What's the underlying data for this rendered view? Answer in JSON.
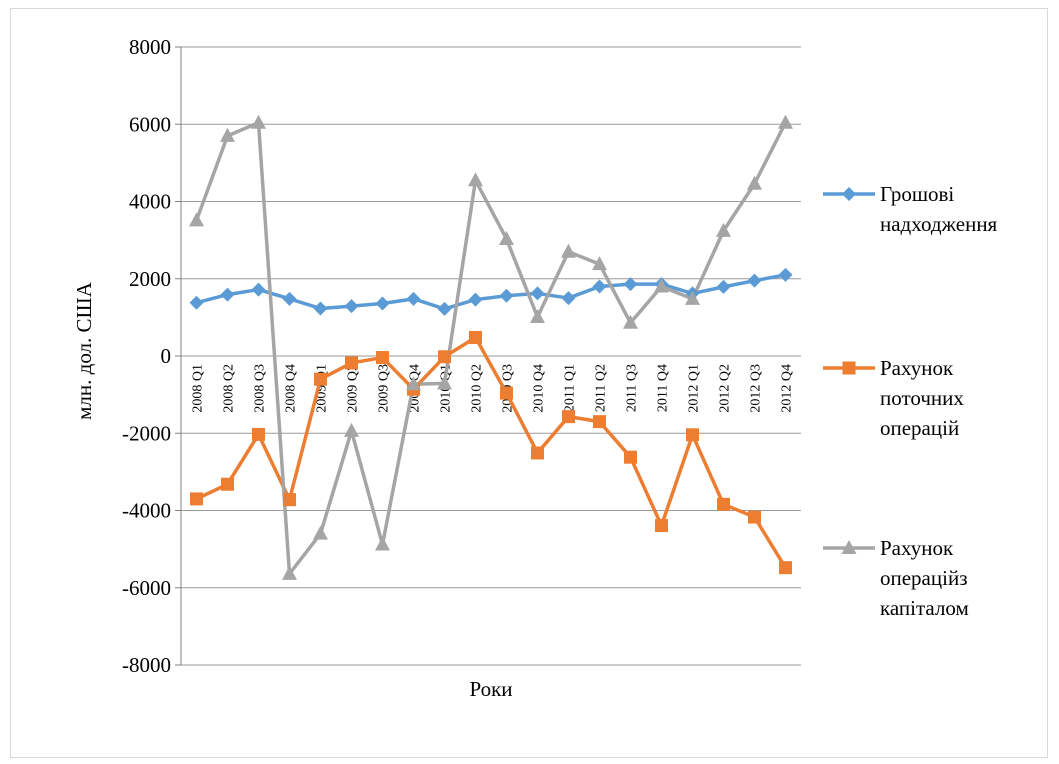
{
  "chart_data": {
    "type": "line",
    "xlabel": "Роки",
    "ylabel": "млн. дол. США",
    "ylim": [
      -8000,
      8000
    ],
    "ytick_step": 2000,
    "yticks": [
      "8000",
      "6000",
      "4000",
      "2000",
      "0",
      "-2000",
      "-4000",
      "-6000",
      "-8000"
    ],
    "grid": true,
    "legend_position": "right",
    "categories": [
      "2008 Q1",
      "2008 Q2",
      "2008 Q3",
      "2008 Q4",
      "2009 Q1",
      "2009 Q2",
      "2009 Q3",
      "2009 Q4",
      "2010 Q1",
      "2010 Q2",
      "2010 Q3",
      "2010 Q4",
      "2011 Q1",
      "2011 Q2",
      "2011 Q3",
      "2011 Q4",
      "2012 Q1",
      "2012 Q2",
      "2012 Q3",
      "2012 Q4"
    ],
    "series": [
      {
        "name": "Грошові надходження",
        "legend_lines": [
          "Грошові",
          "надходження"
        ],
        "color": "#5b9bd5",
        "marker": "diamond",
        "values": [
          1380,
          1590,
          1720,
          1480,
          1230,
          1290,
          1360,
          1480,
          1220,
          1460,
          1560,
          1620,
          1500,
          1800,
          1860,
          1860,
          1620,
          1790,
          1950,
          2100
        ]
      },
      {
        "name": "Рахунок поточних операцій",
        "legend_lines": [
          "Рахунок",
          "поточних",
          "операцій"
        ],
        "color": "#ed7d31",
        "marker": "square",
        "values": [
          -3700,
          -3320,
          -2030,
          -3720,
          -600,
          -180,
          -40,
          -860,
          -20,
          480,
          -960,
          -2510,
          -1570,
          -1700,
          -2620,
          -4390,
          -2040,
          -3840,
          -4170,
          -5480
        ]
      },
      {
        "name": "Рахунок операцій з капіталом",
        "legend_lines": [
          "Рахунок",
          "операційз",
          "капіталом"
        ],
        "color": "#a5a5a5",
        "marker": "triangle",
        "values": [
          3510,
          5700,
          6040,
          -5640,
          -4600,
          -1940,
          -4880,
          -730,
          -710,
          4550,
          3030,
          1010,
          2700,
          2380,
          860,
          1800,
          1480,
          3240,
          4460,
          6040
        ]
      }
    ]
  }
}
